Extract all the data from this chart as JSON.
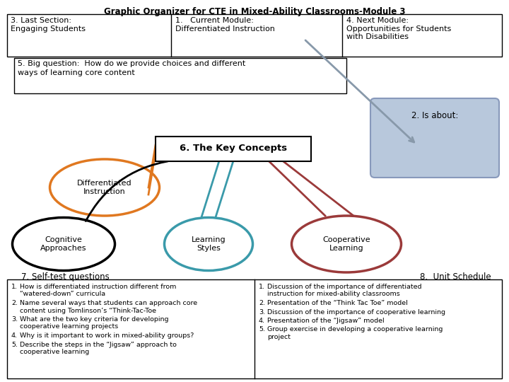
{
  "title": "Graphic Organizer for CTE in Mixed-Ability Classrooms-Module 3",
  "box1_label": "3. Last Section:\nEngaging Students",
  "box2_label": "1.   Current Module:\nDifferentiated Instruction",
  "box3_label": "4. Next Module:\nOpportunities for Students\nwith Disabilities",
  "big_question": "5. Big question:  How do we provide choices and different\nways of learning core content",
  "key_concepts_label": "6. The Key Concepts",
  "is_about_label": "2. Is about:",
  "ellipse1_label": "Differentiated\nInstruction",
  "ellipse2_label": "Cognitive\nApproaches",
  "ellipse3_label": "Learning\nStyles",
  "ellipse4_label": "Cooperative\nLearning",
  "self_test_label": "7. Self-test questions",
  "unit_schedule_label": "8.  Unit Schedule",
  "left_items": [
    "How is differentiated instruction different from\n“watered-down” curricula",
    "Name several ways that students can approach core\ncontent using Tomlinson’s “Think-Tac-Toe",
    "What are the two key criteria for developing\ncooperative learning projects",
    "Why is it important to work in mixed-ability groups?",
    "Describe the steps in the “Jigsaw” approach to\ncooperative learning"
  ],
  "right_items": [
    "Discussion of the importance of differentiated\ninstruction for mixed-ability classrooms",
    "Presentation of the “Think Tac Toe” model",
    "Discussion of the importance of cooperative learning",
    "Presentation of the “Jigsaw” model",
    "Group exercise in developing a cooperative learning\nproject"
  ],
  "bg_color": "#ffffff",
  "title_color": "#000000",
  "orange_color": "#e07820",
  "teal_color": "#3a9aaa",
  "dark_red_color": "#9b3a3a",
  "black_color": "#000000",
  "blue_box_color": "#b8c8dc",
  "blue_box_edge": "#8899bb",
  "text_color": "#000000",
  "arrow_color": "#8899aa"
}
